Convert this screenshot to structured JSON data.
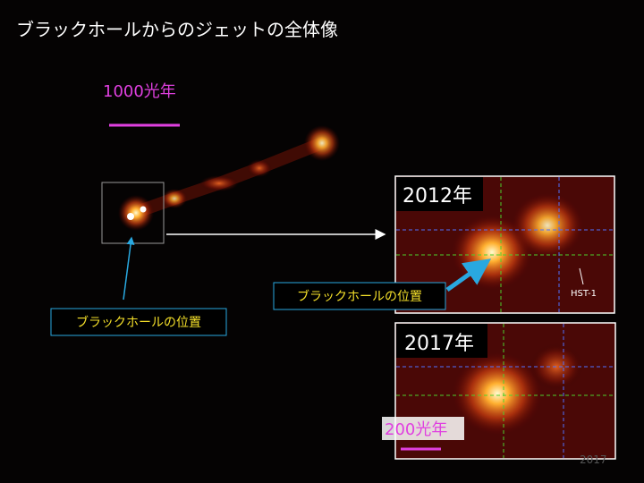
{
  "slide": {
    "title": "ブラックホールからのジェットの全体像"
  },
  "scale_bar": {
    "label": "1000光年"
  },
  "main_image": {
    "callout": "ブラックホールの位置"
  },
  "inset_2012": {
    "label": "2012年",
    "callout": "ブラックホールの位置",
    "marker": "HST-1"
  },
  "inset_2017": {
    "label": "2017年",
    "scale_label": "200光年"
  },
  "footer": {
    "year": "2017"
  }
}
